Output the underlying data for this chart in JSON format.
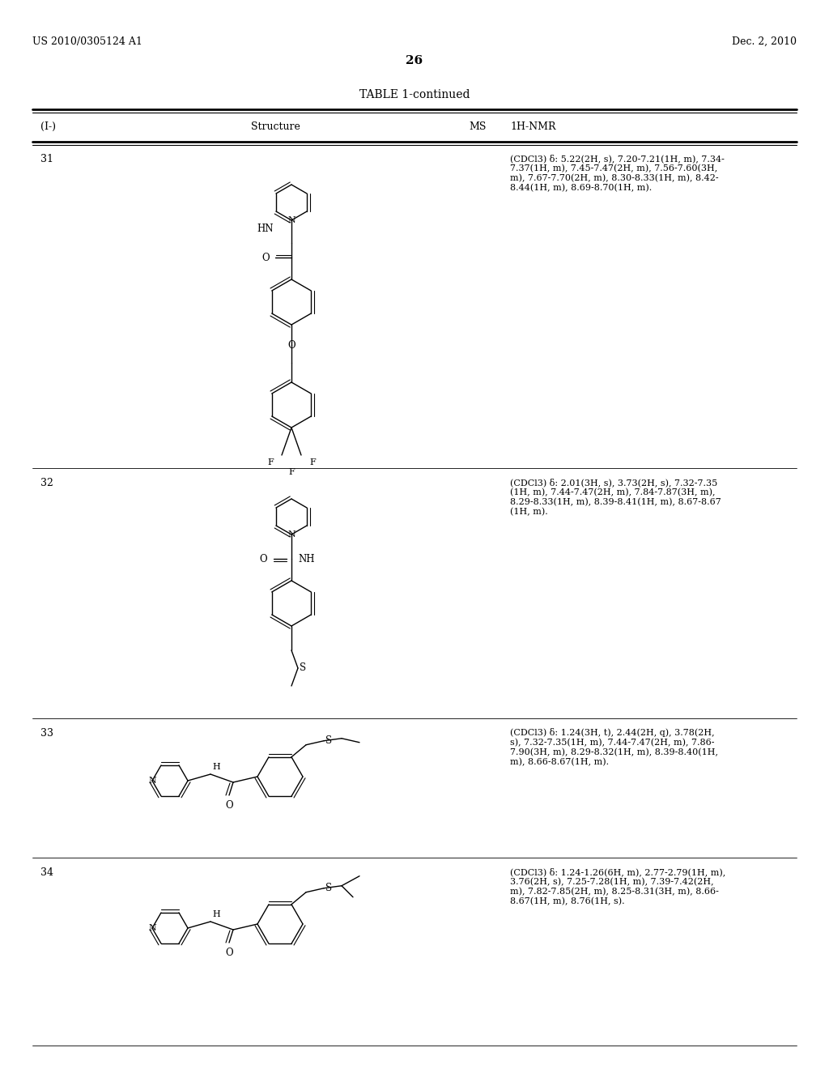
{
  "page_header_left": "US 2010/0305124 A1",
  "page_header_right": "Dec. 2, 2010",
  "page_number": "26",
  "table_title": "TABLE 1-continued",
  "col_headers": [
    "(I-)",
    "Structure",
    "MS",
    "1H-NMR"
  ],
  "rows": [
    {
      "id": "31",
      "nmr": "(CDCl3) δ: 5.22(2H, s), 7.20-7.21(1H, m), 7.34-\n7.37(1H, m), 7.45-7.47(2H, m), 7.56-7.60(3H,\nm), 7.67-7.70(2H, m), 8.30-8.33(1H, m), 8.42-\n8.44(1H, m), 8.69-8.70(1H, m)."
    },
    {
      "id": "32",
      "nmr": "(CDCl3) δ: 2.01(3H, s), 3.73(2H, s), 7.32-7.35\n(1H, m), 7.44-7.47(2H, m), 7.84-7.87(3H, m),\n8.29-8.33(1H, m), 8.39-8.41(1H, m), 8.67-8.67\n(1H, m)."
    },
    {
      "id": "33",
      "nmr": "(CDCl3) δ: 1.24(3H, t), 2.44(2H, q), 3.78(2H,\ns), 7.32-7.35(1H, m), 7.44-7.47(2H, m), 7.86-\n7.90(3H, m), 8.29-8.32(1H, m), 8.39-8.40(1H,\nm), 8.66-8.67(1H, m)."
    },
    {
      "id": "34",
      "nmr": "(CDCl3) δ: 1.24-1.26(6H, m), 2.77-2.79(1H, m),\n3.76(2H, s), 7.25-7.28(1H, m), 7.39-7.42(2H,\nm), 7.82-7.85(2H, m), 8.25-8.31(3H, m), 8.66-\n8.67(1H, m), 8.76(1H, s)."
    }
  ]
}
